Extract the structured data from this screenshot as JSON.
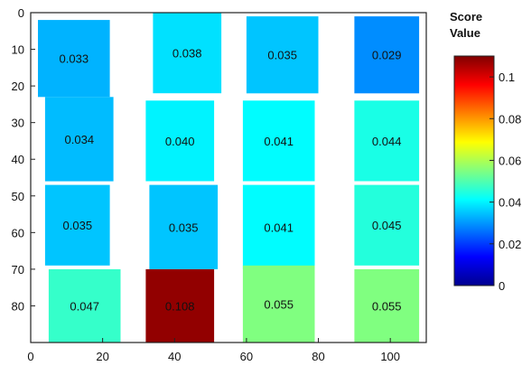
{
  "chart_data": {
    "type": "heatmap",
    "title": "",
    "xlabel": "",
    "ylabel": "",
    "xlim": [
      0,
      110
    ],
    "ylim": [
      0,
      90
    ],
    "y_inverted": true,
    "x_ticks": [
      "0",
      "20",
      "40",
      "60",
      "80",
      "100"
    ],
    "y_ticks": [
      "0",
      "10",
      "20",
      "30",
      "40",
      "50",
      "60",
      "70",
      "80"
    ],
    "colorbar": {
      "title_line1": "Score",
      "title_line2": "Value",
      "min": 0,
      "max": 0.11,
      "ticks": [
        "0",
        "0.02",
        "0.04",
        "0.06",
        "0.08",
        "0.1"
      ]
    },
    "cells": [
      {
        "x0": 2,
        "x1": 22,
        "y0": 2,
        "y1": 23,
        "value": 0.033,
        "label": "0.033"
      },
      {
        "x0": 34,
        "x1": 53,
        "y0": 0,
        "y1": 22,
        "value": 0.038,
        "label": "0.038"
      },
      {
        "x0": 60,
        "x1": 80,
        "y0": 1,
        "y1": 22,
        "value": 0.035,
        "label": "0.035"
      },
      {
        "x0": 90,
        "x1": 108,
        "y0": 1,
        "y1": 22,
        "value": 0.029,
        "label": "0.029"
      },
      {
        "x0": 4,
        "x1": 23,
        "y0": 23,
        "y1": 46,
        "value": 0.034,
        "label": "0.034"
      },
      {
        "x0": 32,
        "x1": 51,
        "y0": 24,
        "y1": 46,
        "value": 0.04,
        "label": "0.040"
      },
      {
        "x0": 59,
        "x1": 79,
        "y0": 24,
        "y1": 46,
        "value": 0.041,
        "label": "0.041"
      },
      {
        "x0": 90,
        "x1": 108,
        "y0": 24,
        "y1": 46,
        "value": 0.044,
        "label": "0.044"
      },
      {
        "x0": 4,
        "x1": 22,
        "y0": 47,
        "y1": 69,
        "value": 0.035,
        "label": "0.035"
      },
      {
        "x0": 33,
        "x1": 52,
        "y0": 47,
        "y1": 70,
        "value": 0.035,
        "label": "0.035"
      },
      {
        "x0": 59,
        "x1": 79,
        "y0": 47,
        "y1": 70,
        "value": 0.041,
        "label": "0.041"
      },
      {
        "x0": 90,
        "x1": 108,
        "y0": 47,
        "y1": 69,
        "value": 0.045,
        "label": "0.045"
      },
      {
        "x0": 5,
        "x1": 25,
        "y0": 70,
        "y1": 93,
        "value": 0.047,
        "label": "0.047"
      },
      {
        "x0": 32,
        "x1": 51,
        "y0": 70,
        "y1": 93,
        "value": 0.108,
        "label": "0.108"
      },
      {
        "x0": 59,
        "x1": 79,
        "y0": 69,
        "y1": 91,
        "value": 0.055,
        "label": "0.055"
      },
      {
        "x0": 90,
        "x1": 108,
        "y0": 70,
        "y1": 91,
        "value": 0.055,
        "label": "0.055"
      }
    ],
    "grid": false,
    "legend": "colorbar-right"
  }
}
